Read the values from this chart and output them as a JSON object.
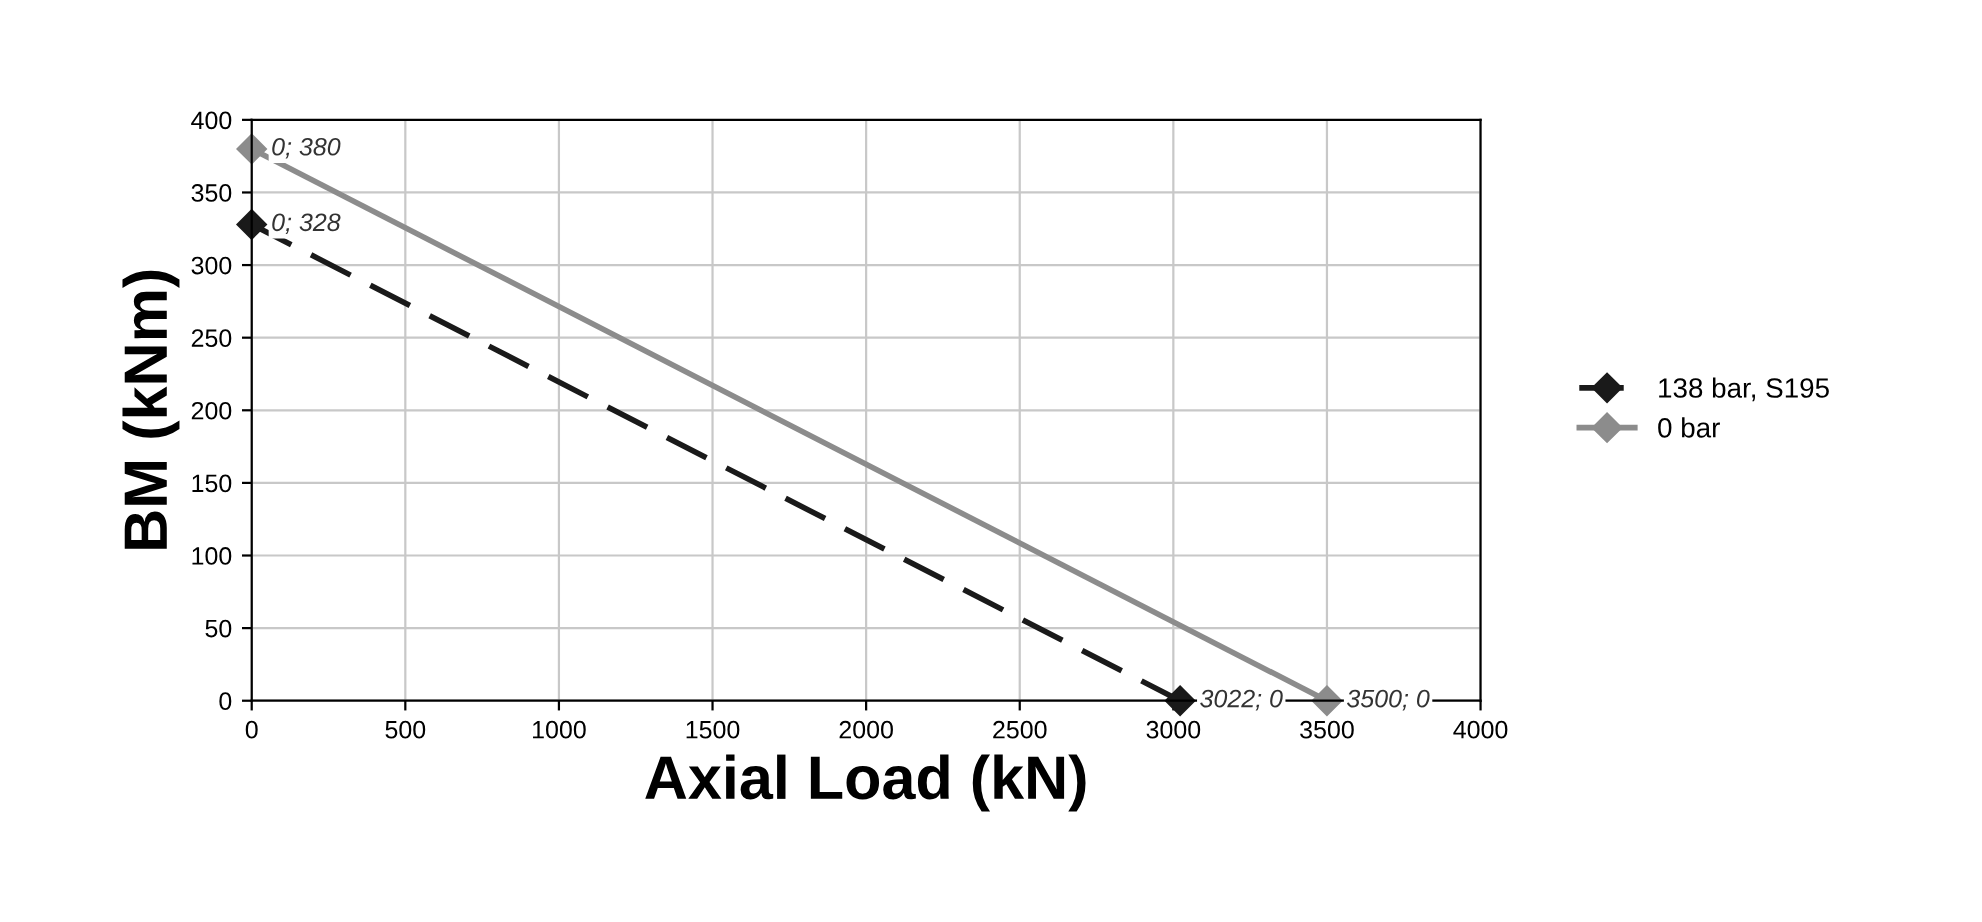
{
  "chart_data": {
    "type": "line",
    "xlabel": "Axial Load (kN)",
    "ylabel": "BM (kNm)",
    "series": [
      {
        "name": "138 bar, S195",
        "color": "#1a1a1a",
        "x": [
          0,
          3022
        ],
        "values": [
          328,
          0
        ],
        "line_style": "dashed",
        "value_labels": [
          "0; 328",
          "3022; 0"
        ]
      },
      {
        "name": "0 bar",
        "color": "#8c8c8c",
        "x": [
          0,
          3500
        ],
        "values": [
          380,
          0
        ],
        "line_style": "solid",
        "value_labels": [
          "0; 380",
          "3500; 0"
        ]
      }
    ],
    "xlim": [
      0,
      4000
    ],
    "xticks": [
      0,
      500,
      1000,
      1500,
      2000,
      2500,
      3000,
      3500,
      4000
    ],
    "ylim": [
      0,
      400
    ],
    "yticks": [
      0,
      50,
      100,
      150,
      200,
      250,
      300,
      350,
      400
    ],
    "grid": true,
    "legend": "right",
    "marker": "diamond"
  }
}
